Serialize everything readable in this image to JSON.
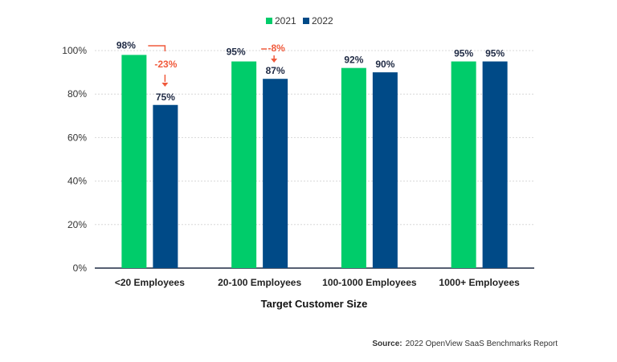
{
  "chart_data": {
    "type": "bar",
    "categories": [
      "<20 Employees",
      "20-100 Employees",
      "100-1000 Employees",
      "1000+ Employees"
    ],
    "series": [
      {
        "name": "2021",
        "values": [
          98,
          95,
          92,
          95
        ],
        "color": "#00cc6a"
      },
      {
        "name": "2022",
        "values": [
          75,
          87,
          90,
          95
        ],
        "color": "#004a87"
      }
    ],
    "data_labels": [
      [
        "98%",
        "95%",
        "92%",
        "95%"
      ],
      [
        "75%",
        "87%",
        "90%",
        "95%"
      ]
    ],
    "annotations": [
      {
        "category": "<20 Employees",
        "text": "-23%",
        "color": "#f05a3c"
      },
      {
        "category": "20-100 Employees",
        "text": "-8%",
        "color": "#f05a3c"
      }
    ],
    "xlabel": "Target Customer Size",
    "ylabel": "",
    "ylim": [
      0,
      100
    ],
    "yticks": [
      "0%",
      "20%",
      "40%",
      "60%",
      "80%",
      "100%"
    ],
    "grid": true,
    "legend_position": "top-center"
  },
  "source": {
    "label": "Source:",
    "text": "2022 OpenView SaaS Benchmarks Report"
  }
}
